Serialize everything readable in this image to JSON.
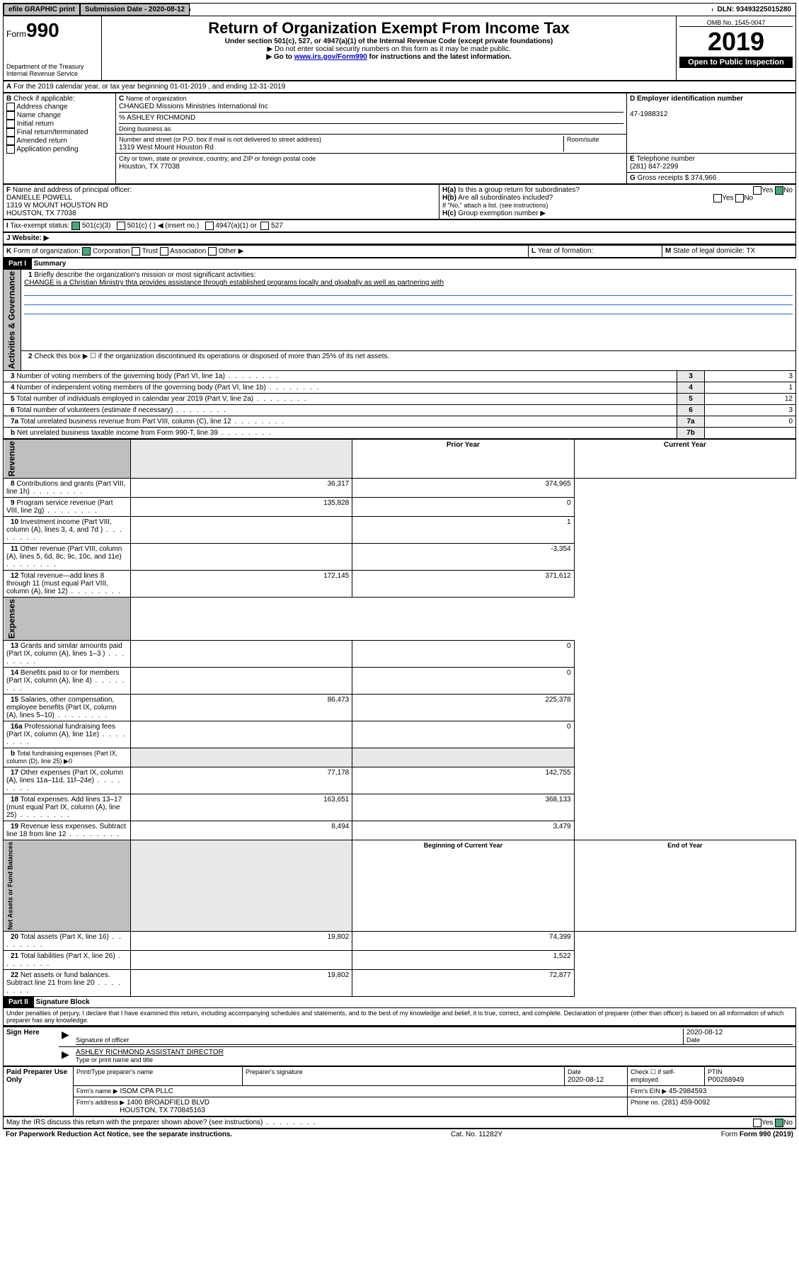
{
  "topbar": {
    "efile": "efile GRAPHIC print",
    "subdate_label": "Submission Date - 2020-08-12",
    "dln": "DLN: 93493225015280"
  },
  "header": {
    "form_prefix": "Form",
    "form_no": "990",
    "dept": "Department of the Treasury",
    "irs": "Internal Revenue Service",
    "title": "Return of Organization Exempt From Income Tax",
    "sub1": "Under section 501(c), 527, or 4947(a)(1) of the Internal Revenue Code (except private foundations)",
    "sub2": "▶ Do not enter social security numbers on this form as it may be made public.",
    "sub3_pre": "▶ Go to ",
    "sub3_link": "www.irs.gov/Form990",
    "sub3_post": " for instructions and the latest information.",
    "omb": "OMB No. 1545-0047",
    "year": "2019",
    "open": "Open to Public Inspection"
  },
  "A": {
    "text": "For the 2019 calendar year, or tax year beginning 01-01-2019  , and ending 12-31-2019"
  },
  "B": {
    "label": "Check if applicable:",
    "opts": [
      "Address change",
      "Name change",
      "Initial return",
      "Final return/terminated",
      "Amended return",
      "Application pending"
    ]
  },
  "C": {
    "name_lbl": "Name of organization",
    "name": "CHANGED Missions Ministries International Inc",
    "care_lbl": "% ASHLEY RICHMOND",
    "dba_lbl": "Doing business as",
    "addr_lbl": "Number and street (or P.O. box if mail is not delivered to street address)",
    "addr": "1319 West Mount Houston Rd",
    "room_lbl": "Room/suite",
    "city_lbl": "City or town, state or province, country, and ZIP or foreign postal code",
    "city": "Houston, TX  77038"
  },
  "D": {
    "lbl": "Employer identification number",
    "val": "47-1988312"
  },
  "E": {
    "lbl": "Telephone number",
    "val": "(281) 847-2299"
  },
  "G": {
    "lbl": "Gross receipts $",
    "val": "374,966"
  },
  "F": {
    "lbl": "Name and address of principal officer:",
    "name": "DANIELLE POWELL",
    "addr1": "1319 W MOUNT HOUSTON RD",
    "addr2": "HOUSTON, TX  77038"
  },
  "H": {
    "a": "Is this a group return for subordinates?",
    "b": "Are all subordinates included?",
    "b_note": "If \"No,\" attach a list. (see instructions)",
    "c": "Group exemption number ▶"
  },
  "I": {
    "lbl": "Tax-exempt status:",
    "opts": [
      "501(c)(3)",
      "501(c) (  ) ◀ (insert no.)",
      "4947(a)(1) or",
      "527"
    ]
  },
  "J": {
    "lbl": "Website: ▶"
  },
  "K": {
    "lbl": "Form of organization:",
    "opts": [
      "Corporation",
      "Trust",
      "Association",
      "Other ▶"
    ]
  },
  "L": {
    "lbl": "Year of formation:"
  },
  "M": {
    "lbl": "State of legal domicile: TX"
  },
  "part1": {
    "title": "Part I",
    "sub": "Summary",
    "l1_lbl": "Briefly describe the organization's mission or most significant activities:",
    "l1_text": "CHANGE is a Christian Ministry thta provides assistance through established programs locally and gloabally as well as partnering with",
    "l2": "Check this box ▶ ☐  if the organization discontinued its operations or disposed of more than 25% of its net assets.",
    "rows_a": [
      {
        "n": "3",
        "t": "Number of voting members of the governing body (Part VI, line 1a)",
        "k": "3",
        "v": "3"
      },
      {
        "n": "4",
        "t": "Number of independent voting members of the governing body (Part VI, line 1b)",
        "k": "4",
        "v": "1"
      },
      {
        "n": "5",
        "t": "Total number of individuals employed in calendar year 2019 (Part V, line 2a)",
        "k": "5",
        "v": "12"
      },
      {
        "n": "6",
        "t": "Total number of volunteers (estimate if necessary)",
        "k": "6",
        "v": "3"
      },
      {
        "n": "7a",
        "t": "Total unrelated business revenue from Part VIII, column (C), line 12",
        "k": "7a",
        "v": "0"
      },
      {
        "n": "b",
        "t": "Net unrelated business taxable income from Form 990-T, line 39",
        "k": "7b",
        "v": ""
      }
    ],
    "col_prior": "Prior Year",
    "col_curr": "Current Year",
    "rev": [
      {
        "n": "8",
        "t": "Contributions and grants (Part VIII, line 1h)",
        "p": "36,317",
        "c": "374,965"
      },
      {
        "n": "9",
        "t": "Program service revenue (Part VIII, line 2g)",
        "p": "135,828",
        "c": "0"
      },
      {
        "n": "10",
        "t": "Investment income (Part VIII, column (A), lines 3, 4, and 7d )",
        "p": "",
        "c": "1"
      },
      {
        "n": "11",
        "t": "Other revenue (Part VIII, column (A), lines 5, 6d, 8c, 9c, 10c, and 11e)",
        "p": "",
        "c": "-3,354"
      },
      {
        "n": "12",
        "t": "Total revenue—add lines 8 through 11 (must equal Part VIII, column (A), line 12)",
        "p": "172,145",
        "c": "371,612"
      }
    ],
    "exp": [
      {
        "n": "13",
        "t": "Grants and similar amounts paid (Part IX, column (A), lines 1–3 )",
        "p": "",
        "c": "0"
      },
      {
        "n": "14",
        "t": "Benefits paid to or for members (Part IX, column (A), line 4)",
        "p": "",
        "c": "0"
      },
      {
        "n": "15",
        "t": "Salaries, other compensation, employee benefits (Part IX, column (A), lines 5–10)",
        "p": "86,473",
        "c": "225,378"
      },
      {
        "n": "16a",
        "t": "Professional fundraising fees (Part IX, column (A), line 11e)",
        "p": "",
        "c": "0"
      },
      {
        "n": "b",
        "t": "Total fundraising expenses (Part IX, column (D), line 25) ▶0",
        "p": null,
        "c": null
      },
      {
        "n": "17",
        "t": "Other expenses (Part IX, column (A), lines 11a–11d, 11f–24e)",
        "p": "77,178",
        "c": "142,755"
      },
      {
        "n": "18",
        "t": "Total expenses. Add lines 13–17 (must equal Part IX, column (A), line 25)",
        "p": "163,651",
        "c": "368,133"
      },
      {
        "n": "19",
        "t": "Revenue less expenses. Subtract line 18 from line 12",
        "p": "8,494",
        "c": "3,479"
      }
    ],
    "col_beg": "Beginning of Current Year",
    "col_end": "End of Year",
    "net": [
      {
        "n": "20",
        "t": "Total assets (Part X, line 16)",
        "p": "19,802",
        "c": "74,399"
      },
      {
        "n": "21",
        "t": "Total liabilities (Part X, line 26)",
        "p": "",
        "c": "1,522"
      },
      {
        "n": "22",
        "t": "Net assets or fund balances. Subtract line 21 from line 20",
        "p": "19,802",
        "c": "72,877"
      }
    ],
    "vlabels": {
      "gov": "Activities & Governance",
      "rev": "Revenue",
      "exp": "Expenses",
      "net": "Net Assets or Fund Balances"
    }
  },
  "part2": {
    "title": "Part II",
    "sub": "Signature Block",
    "decl": "Under penalties of perjury, I declare that I have examined this return, including accompanying schedules and statements, and to the best of my knowledge and belief, it is true, correct, and complete. Declaration of preparer (other than officer) is based on all information of which preparer has any knowledge.",
    "sign_here": "Sign Here",
    "sig_officer": "Signature of officer",
    "sig_date": "2020-08-12",
    "date_lbl": "Date",
    "officer_name": "ASHLEY RICHMOND  ASSISTANT DIRECTOR",
    "type_lbl": "Type or print name and title",
    "paid": "Paid Preparer Use Only",
    "prep_name_lbl": "Print/Type preparer's name",
    "prep_sig_lbl": "Preparer's signature",
    "prep_date_lbl": "Date",
    "prep_date": "2020-08-12",
    "self_emp": "Check ☐ if self-employed",
    "ptin_lbl": "PTIN",
    "ptin": "P00268949",
    "firm_name_lbl": "Firm's name   ▶",
    "firm_name": "ISOM CPA PLLC",
    "firm_ein_lbl": "Firm's EIN ▶",
    "firm_ein": "45-2984593",
    "firm_addr_lbl": "Firm's address ▶",
    "firm_addr1": "1400 BROADFIELD BLVD",
    "firm_addr2": "HOUSTON, TX  770845163",
    "phone_lbl": "Phone no.",
    "phone": "(281) 459-0092",
    "discuss": "May the IRS discuss this return with the preparer shown above? (see instructions)"
  },
  "footer": {
    "pra": "For Paperwork Reduction Act Notice, see the separate instructions.",
    "cat": "Cat. No. 11282Y",
    "form": "Form 990 (2019)"
  },
  "style": {
    "link_color": "#0000cc",
    "check_green": "#4a7",
    "gray": "#bfbfbf"
  }
}
